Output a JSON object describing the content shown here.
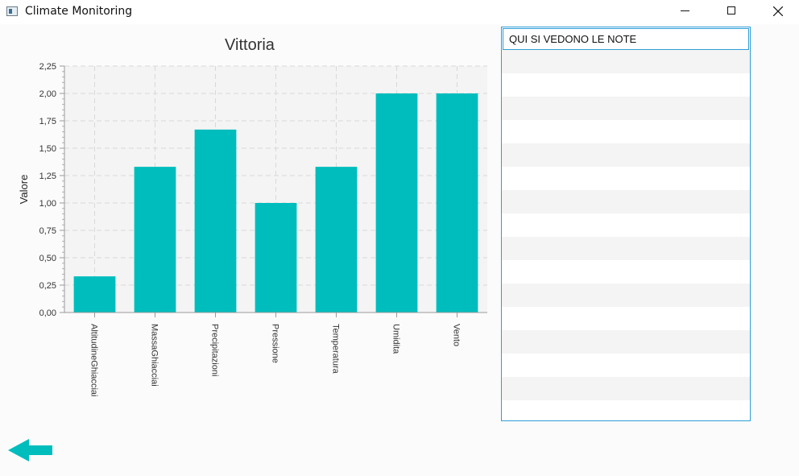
{
  "window": {
    "title": "Climate Monitoring"
  },
  "colors": {
    "bar": "#00bdbd",
    "accent": "#2f9ed8",
    "plot_bg": "#f4f4f4"
  },
  "chart_data": {
    "type": "bar",
    "title": "Vittoria",
    "ylabel": "Valore",
    "xlabel": "",
    "categories": [
      "AltitudineGhiacciai",
      "MassaGhiacciai",
      "Precipitazioni",
      "Pressione",
      "Temperatura",
      "Umidita",
      "Vento"
    ],
    "values": [
      0.33,
      1.33,
      1.67,
      1.0,
      1.33,
      2.0,
      2.0
    ],
    "ylim": [
      0,
      2.25
    ],
    "yticks": [
      "0,00",
      "0,25",
      "0,50",
      "0,75",
      "1,00",
      "1,25",
      "1,50",
      "1,75",
      "2,00",
      "2,25"
    ],
    "grid": true
  },
  "notes": {
    "items": [
      "QUI SI VEDONO LE NOTE"
    ]
  },
  "back_button": {
    "icon": "arrow-left-icon"
  }
}
